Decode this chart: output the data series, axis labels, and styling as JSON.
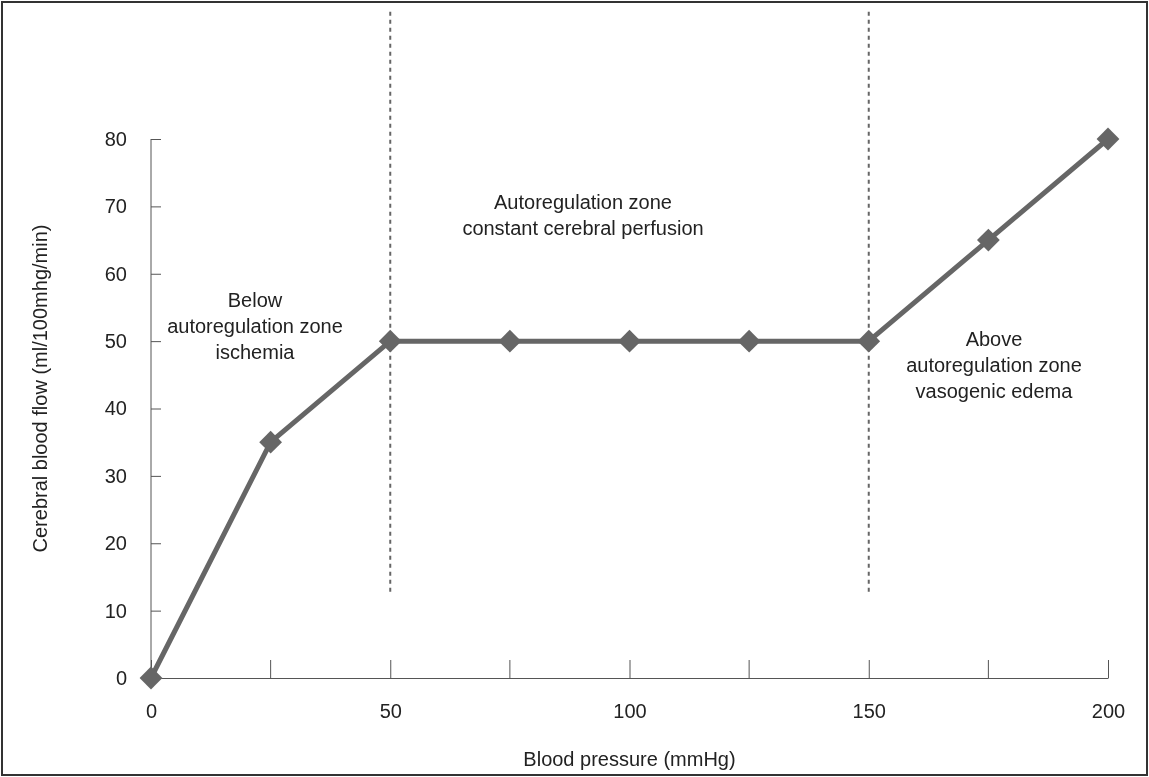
{
  "chart_data": {
    "type": "line",
    "xlabel": "Blood pressure (mmHg)",
    "ylabel": "Cerebral blood flow (ml/100mhg/min)",
    "x": [
      0,
      25,
      50,
      75,
      100,
      125,
      150,
      175,
      200
    ],
    "series": [
      {
        "color": "#666666",
        "values": [
          0,
          35,
          50,
          50,
          50,
          50,
          50,
          65,
          80
        ]
      }
    ],
    "xlim": [
      0,
      200
    ],
    "xticks": [
      0,
      50,
      100,
      150,
      200
    ],
    "ylim": [
      0,
      80
    ],
    "yticks": [
      0,
      10,
      20,
      30,
      40,
      50,
      60,
      70,
      80
    ],
    "marker": "diamond",
    "line_style": "solid",
    "grid": false,
    "ref_lines": [
      {
        "axis": "x",
        "value": 50,
        "color": "#666666",
        "line_style": "dashed"
      },
      {
        "axis": "x",
        "value": 150,
        "color": "#666666",
        "line_style": "dashed"
      }
    ],
    "annotations": [
      "Below\nautoregulation zone\nischemia",
      "Autoregulation zone\nconstant cerebral perfusion",
      "Above\nautoregulation zone\nvasogenic edema"
    ]
  }
}
